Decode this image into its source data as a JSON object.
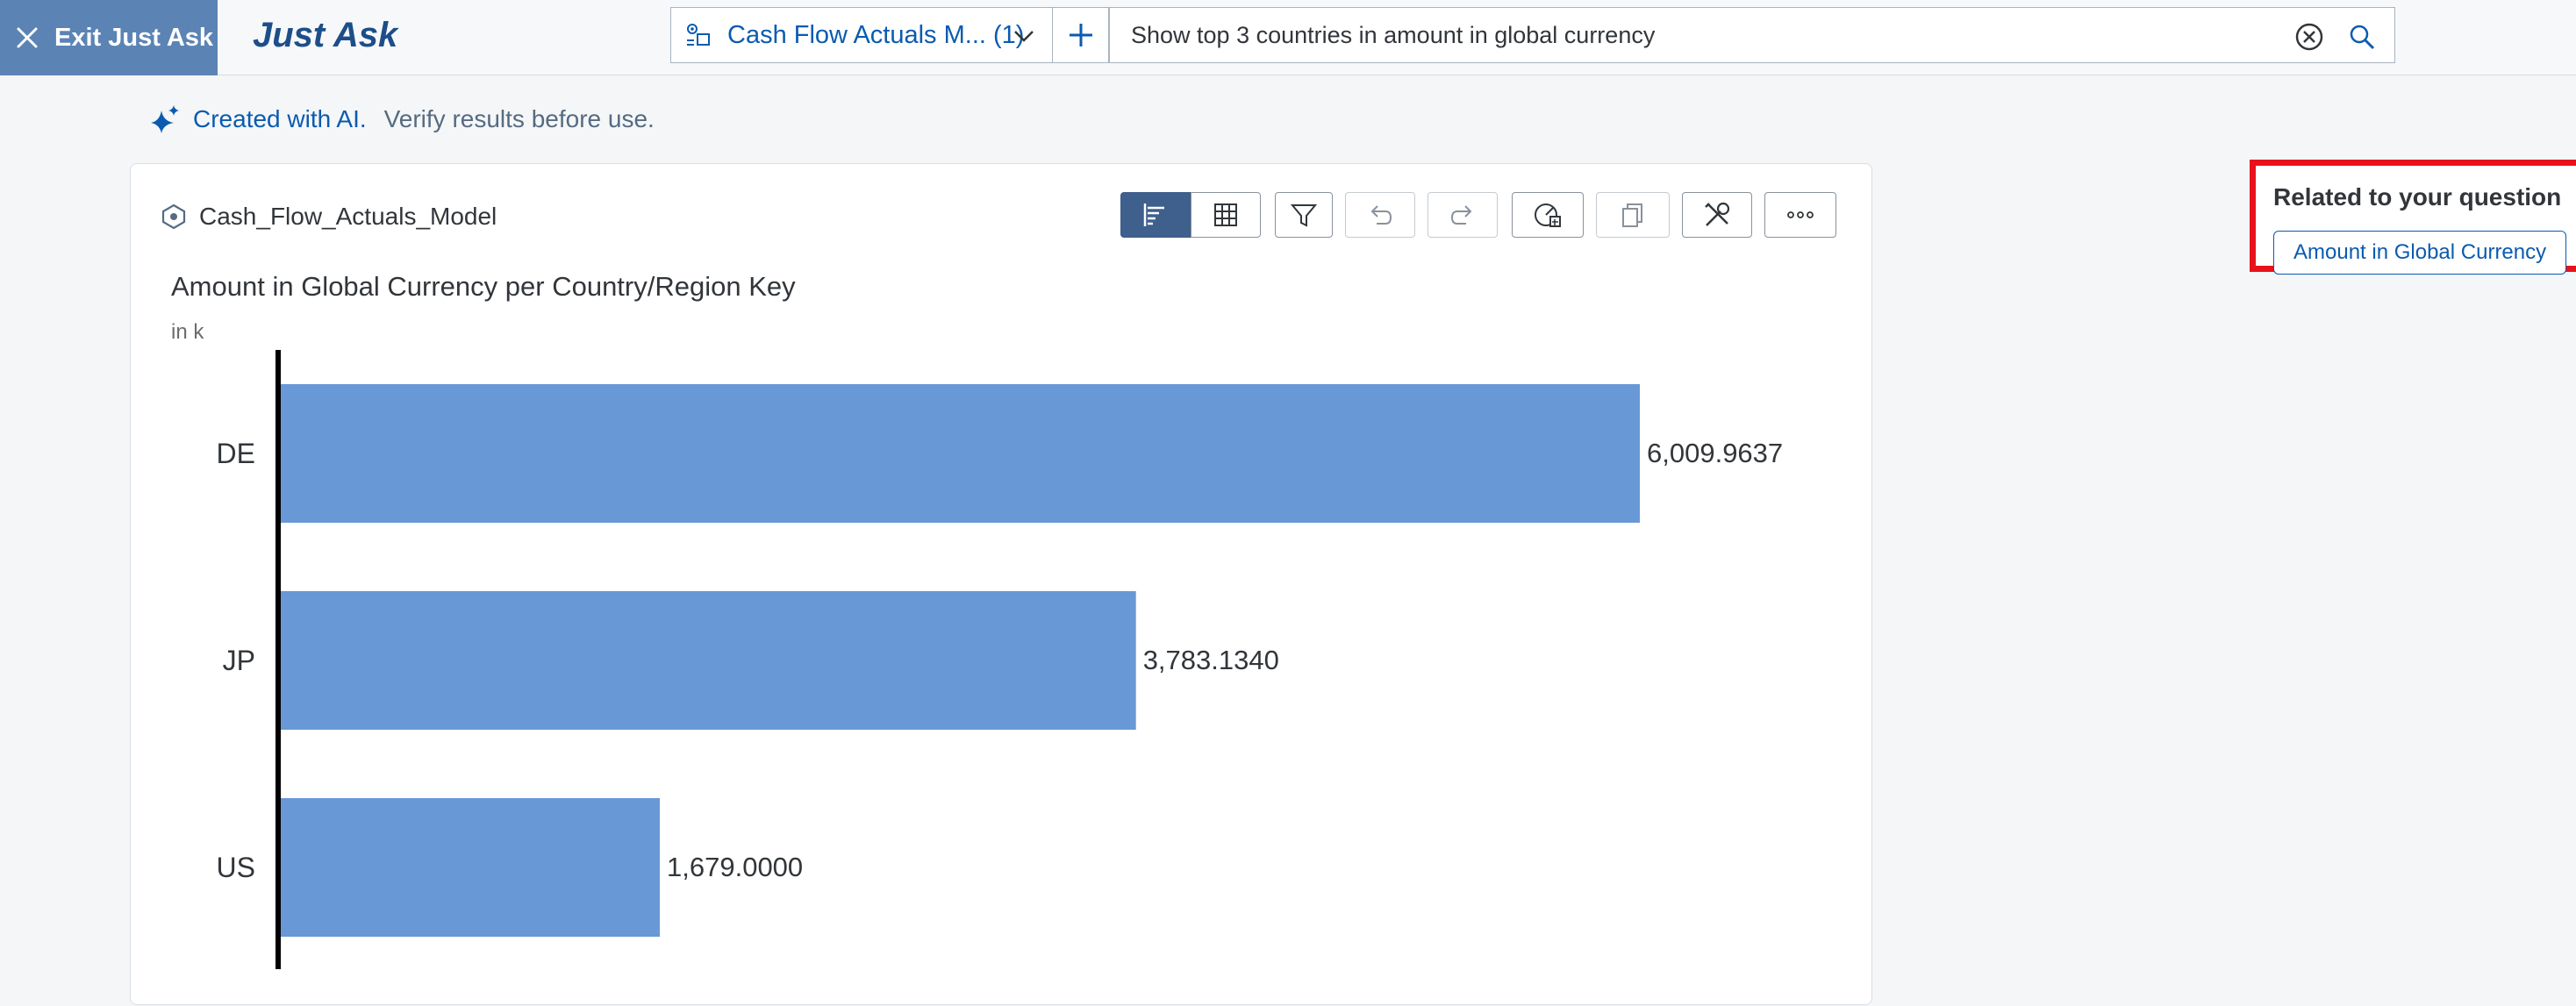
{
  "header": {
    "exit_label": "Exit Just Ask",
    "title": "Just Ask",
    "model_select": "Cash Flow Actuals M... (1)",
    "search_value": "Show top 3 countries in amount in global currency",
    "search_placeholder": ""
  },
  "ai_note": {
    "label": "Created with AI.",
    "verify": "Verify results before use."
  },
  "card": {
    "model_name": "Cash_Flow_Actuals_Model",
    "toolbar": {
      "chart_view": "chart-view-icon",
      "table_view": "table-view-icon",
      "filter": "filter-icon",
      "undo": "undo-icon",
      "redo": "redo-icon",
      "explore": "explore-icon",
      "copy": "copy-icon",
      "tools": "tools-icon",
      "more": "more-icon"
    }
  },
  "chart_data": {
    "type": "bar",
    "orientation": "horizontal",
    "title": "Amount in Global Currency per Country/Region Key",
    "unit": "in k",
    "categories": [
      "DE",
      "JP",
      "US"
    ],
    "values": [
      6009.9637,
      3783.134,
      1679.0
    ],
    "value_labels": [
      "6,009.9637",
      "3,783.1340",
      "1,679.0000"
    ],
    "color": "#6898d6",
    "xlim": [
      0,
      6009.9637
    ]
  },
  "related": {
    "title": "Related to your question",
    "chip": "Amount in Global Currency"
  }
}
